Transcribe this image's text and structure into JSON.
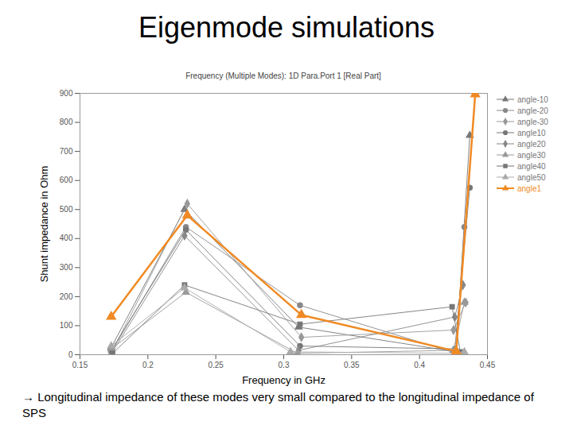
{
  "chart_data": {
    "type": "line",
    "title": "Eigenmode simulations",
    "subtitle": "Frequency (Multiple Modes): 1D Para.Port 1 [Real Part]",
    "x_label": "Frequency in GHz",
    "y_label": "Shunt impedance in Ohm",
    "caption": "→ Longitudinal impedance of these modes very small compared to the longitudinal impedance of SPS",
    "xlim": [
      0.15,
      0.45
    ],
    "xticks": [
      0.15,
      0.2,
      0.25,
      0.3,
      0.35,
      0.4,
      0.45
    ],
    "ylim": [
      0,
      900
    ],
    "yticks": [
      0,
      100,
      200,
      300,
      400,
      500,
      600,
      700,
      800,
      900
    ],
    "grid": false,
    "legend": "right",
    "series": [
      {
        "name": "angle-10",
        "color": "#777777",
        "marker": "triangle",
        "line_style": "thin",
        "x": [
          0.173,
          0.227,
          0.311,
          0.427,
          0.437
        ],
        "values": [
          25,
          500,
          95,
          10,
          755
        ]
      },
      {
        "name": "angle-20",
        "color": "#888888",
        "marker": "circle",
        "line_style": "thin",
        "x": [
          0.173,
          0.228,
          0.312,
          0.427,
          0.433
        ],
        "values": [
          10,
          440,
          170,
          5,
          440
        ]
      },
      {
        "name": "angle-30",
        "color": "#999999",
        "marker": "diamond",
        "line_style": "thin",
        "x": [
          0.173,
          0.229,
          0.313,
          0.425,
          0.434
        ],
        "values": [
          5,
          520,
          60,
          85,
          180
        ]
      },
      {
        "name": "angle10",
        "color": "#777777",
        "marker": "circle",
        "line_style": "thin",
        "x": [
          0.173,
          0.228,
          0.312,
          0.426,
          0.437
        ],
        "values": [
          15,
          430,
          30,
          20,
          575
        ]
      },
      {
        "name": "angle20",
        "color": "#888888",
        "marker": "diamond",
        "line_style": "thin",
        "x": [
          0.174,
          0.227,
          0.311,
          0.426,
          0.432
        ],
        "values": [
          10,
          410,
          15,
          130,
          240
        ]
      },
      {
        "name": "angle30",
        "color": "#999999",
        "marker": "triangle",
        "line_style": "thin",
        "x": [
          0.173,
          0.228,
          0.31,
          0.425,
          0.433
        ],
        "values": [
          20,
          215,
          5,
          15,
          180
        ]
      },
      {
        "name": "angle40",
        "color": "#777777",
        "marker": "square",
        "line_style": "thin",
        "x": [
          0.174,
          0.227,
          0.312,
          0.424,
          0.43
        ],
        "values": [
          5,
          240,
          105,
          165,
          10
        ]
      },
      {
        "name": "angle50",
        "color": "#aaaaaa",
        "marker": "triangle",
        "line_style": "thin",
        "x": [
          0.173,
          0.227,
          0.305,
          0.426,
          0.433
        ],
        "values": [
          30,
          230,
          10,
          5,
          10
        ]
      },
      {
        "name": "angle1",
        "color": "#f08a24",
        "marker": "triangle",
        "line_style": "thick",
        "x": [
          0.173,
          0.229,
          0.313,
          0.427,
          0.441
        ],
        "values": [
          131,
          480,
          137,
          12,
          897
        ]
      }
    ]
  }
}
